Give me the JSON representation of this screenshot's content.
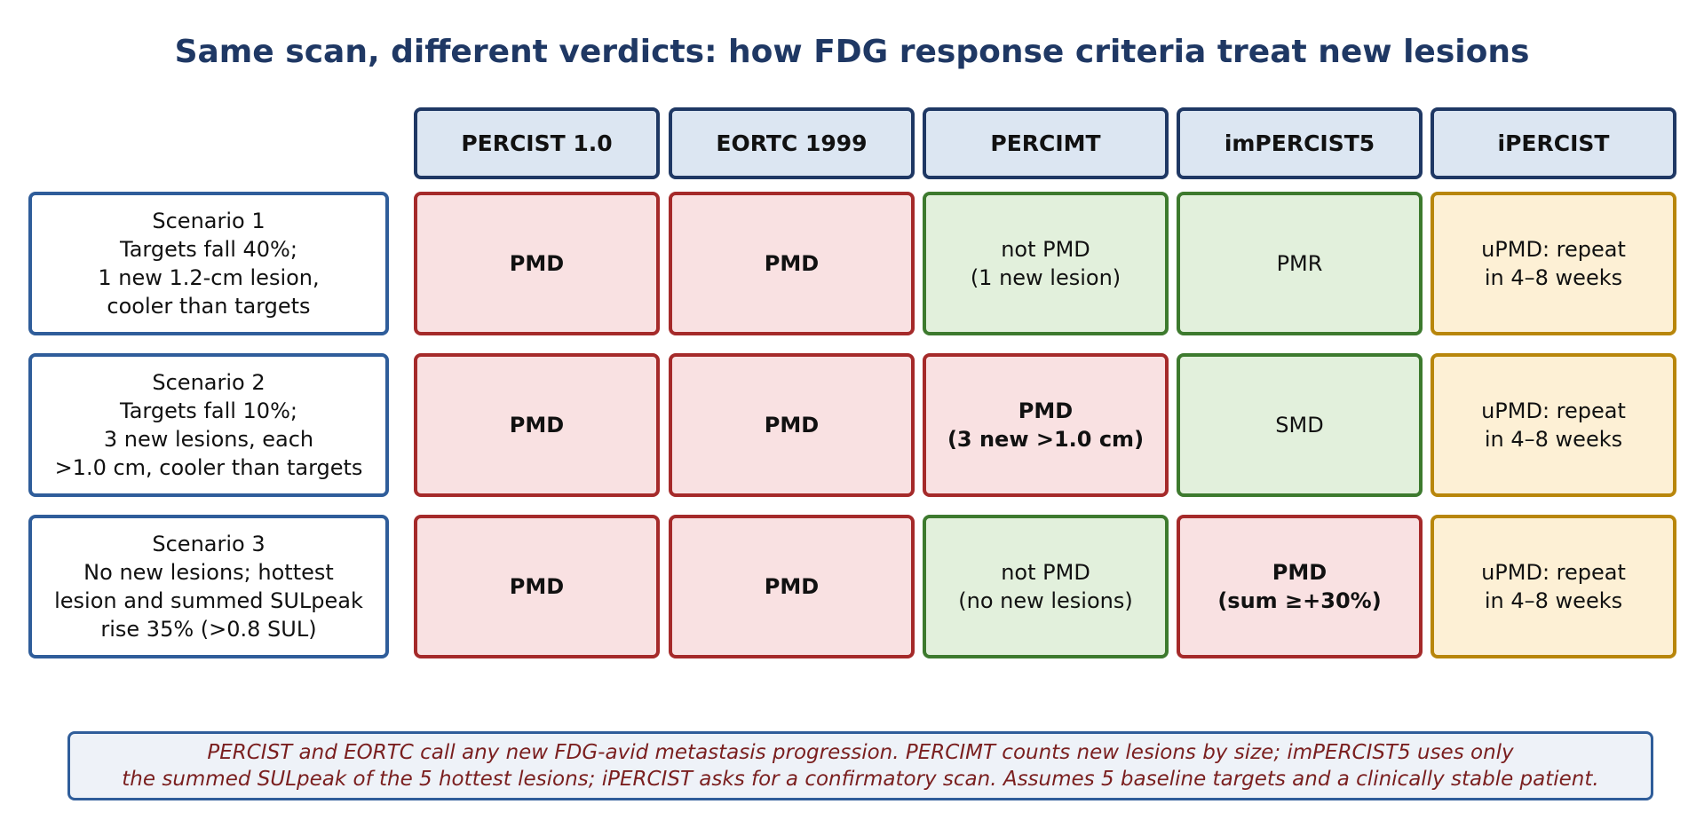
{
  "title": "Same scan, different verdicts: how FDG response criteria treat new lesions",
  "columns": [
    "PERCIST 1.0",
    "EORTC 1999",
    "PERCIMT",
    "imPERCIST5",
    "iPERCIST"
  ],
  "scenarios": [
    {
      "label": "Scenario 1\nTargets fall 40%;\n1 new 1.2-cm lesion,\ncooler than targets",
      "verdicts": [
        {
          "text": "PMD",
          "status": "progression"
        },
        {
          "text": "PMD",
          "status": "progression"
        },
        {
          "text": "not PMD\n(1 new lesion)",
          "status": "not-progression"
        },
        {
          "text": "PMR",
          "status": "not-progression"
        },
        {
          "text": "uPMD: repeat\nin 4–8 weeks",
          "status": "unconfirmed"
        }
      ]
    },
    {
      "label": "Scenario 2\nTargets fall 10%;\n3 new lesions, each\n>1.0 cm, cooler than targets",
      "verdicts": [
        {
          "text": "PMD",
          "status": "progression"
        },
        {
          "text": "PMD",
          "status": "progression"
        },
        {
          "text": "PMD\n(3 new >1.0 cm)",
          "status": "progression"
        },
        {
          "text": "SMD",
          "status": "not-progression"
        },
        {
          "text": "uPMD: repeat\nin 4–8 weeks",
          "status": "unconfirmed"
        }
      ]
    },
    {
      "label": "Scenario 3\nNo new lesions; hottest\nlesion and summed SULpeak\nrise 35% (>0.8 SUL)",
      "verdicts": [
        {
          "text": "PMD",
          "status": "progression"
        },
        {
          "text": "PMD",
          "status": "progression"
        },
        {
          "text": "not PMD\n(no new lesions)",
          "status": "not-progression"
        },
        {
          "text": "PMD\n(sum ≥+30%)",
          "status": "progression"
        },
        {
          "text": "uPMD: repeat\nin 4–8 weeks",
          "status": "unconfirmed"
        }
      ]
    }
  ],
  "footnote": {
    "line1": "PERCIST and EORTC call any new FDG-avid metastasis progression. PERCIMT counts new lesions by size; imPERCIST5 uses only",
    "line2": "the summed SULpeak of the 5 hottest lesions; iPERCIST asks for a confirmatory scan. Assumes 5 baseline targets and a clinically stable patient."
  },
  "colors": {
    "progression": "#a52a2a",
    "not-progression": "#3d7a2e",
    "unconfirmed": "#b8860b",
    "header": "#1f3864"
  }
}
